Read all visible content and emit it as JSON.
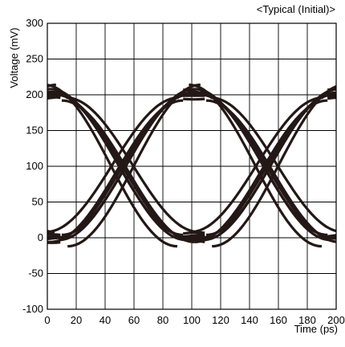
{
  "chart_data": {
    "type": "line",
    "subtitle": "<Typical (Initial)>",
    "xlabel": "Time (ps)",
    "ylabel": "Voltage (mV)",
    "xlim": [
      0,
      200
    ],
    "ylim": [
      -100,
      300
    ],
    "xticks": [
      0,
      20,
      40,
      60,
      80,
      100,
      120,
      140,
      160,
      180,
      200
    ],
    "yticks": [
      -100,
      -50,
      0,
      50,
      100,
      150,
      200,
      250,
      300
    ],
    "grid": true,
    "line_color": "#231815",
    "unit_interval_ps": 100,
    "crossings": [
      {
        "x": 52,
        "y": 100
      },
      {
        "x": 152,
        "y": 100
      }
    ],
    "series": [
      {
        "high": 200,
        "low": 0,
        "spread_ps": 0,
        "level_spread": 0
      },
      {
        "high": 208,
        "low": 4,
        "spread_ps": 4,
        "level_spread": 8
      },
      {
        "high": 192,
        "low": -6,
        "spread_ps": -4,
        "level_spread": -8
      },
      {
        "high": 214,
        "low": -12,
        "spread_ps": 8,
        "level_spread": 14
      },
      {
        "high": 196,
        "low": 8,
        "spread_ps": -7,
        "level_spread": -12
      },
      {
        "high": 203,
        "low": -3,
        "spread_ps": 2,
        "level_spread": 5
      }
    ]
  }
}
